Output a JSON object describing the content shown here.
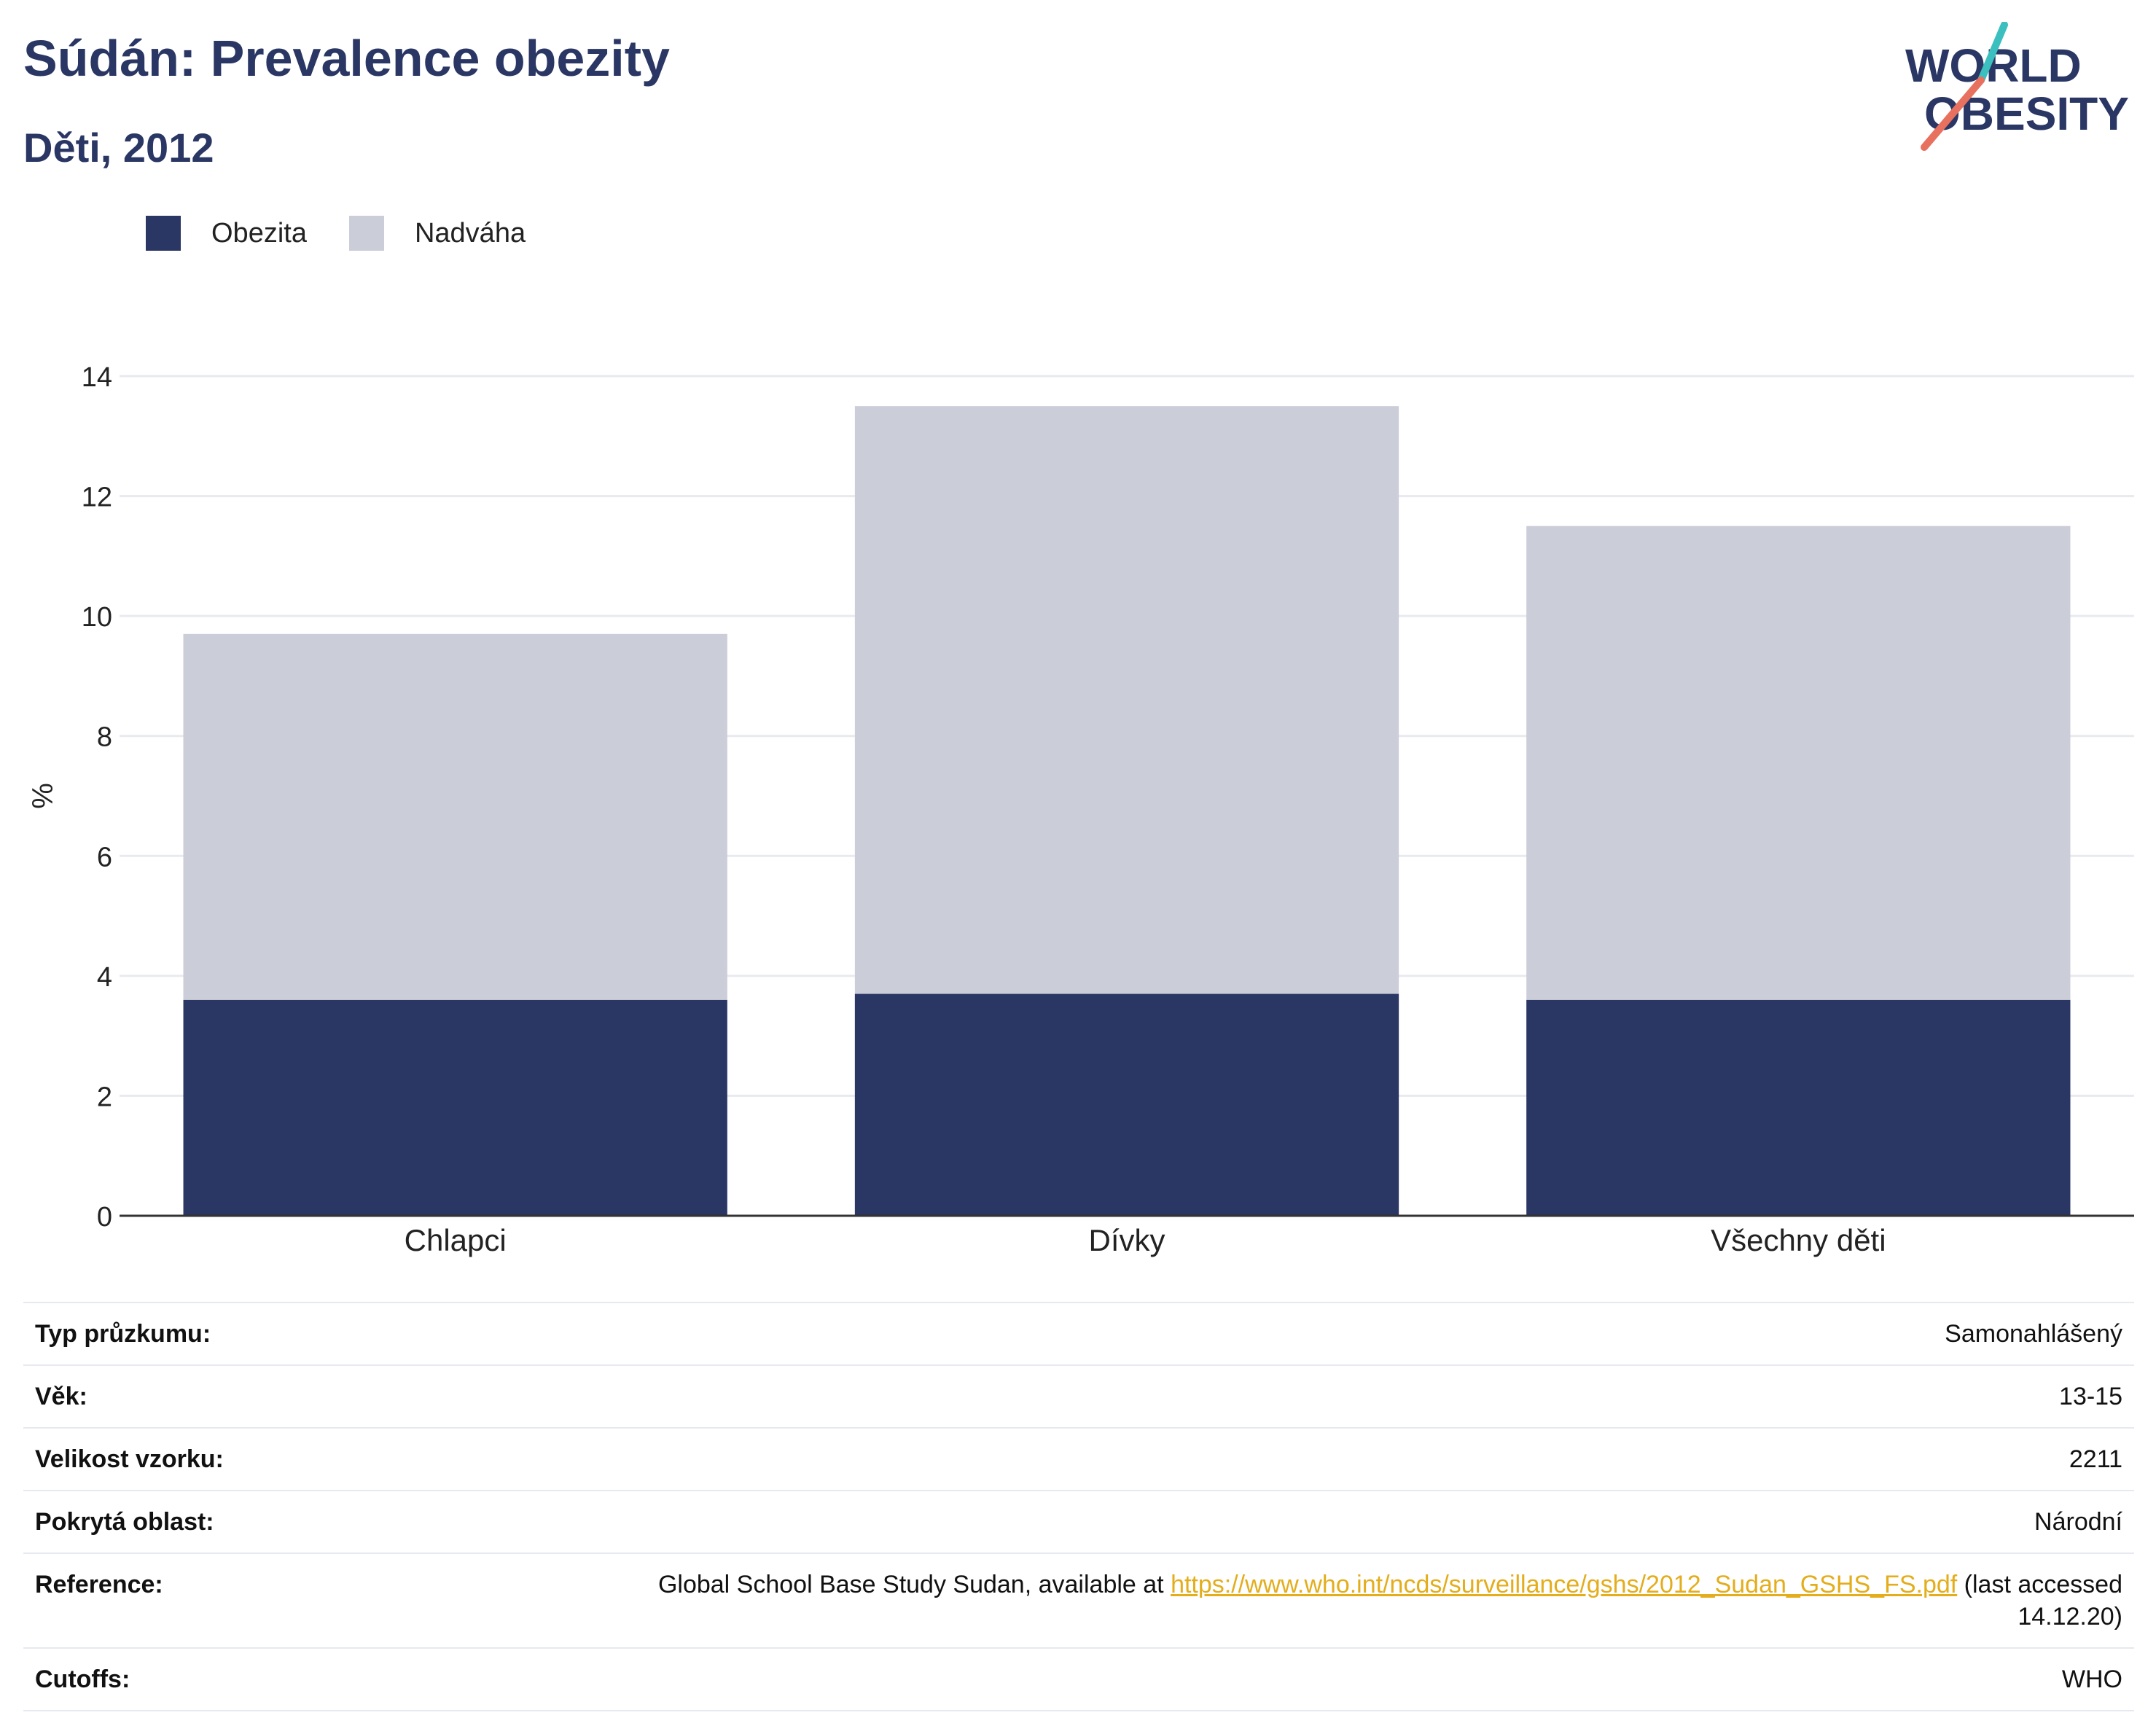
{
  "header": {
    "title": "Súdán: Prevalence obezity",
    "subtitle": "Děti, 2012",
    "logo": {
      "line1": "WORLD",
      "line2": "OBESITY"
    }
  },
  "legend": [
    {
      "label": "Obezita",
      "color": "#2a3663"
    },
    {
      "label": "Nadváha",
      "color": "#cbcdd8"
    }
  ],
  "chart_data": {
    "type": "bar",
    "stacked": true,
    "categories": [
      "Chlapci",
      "Dívky",
      "Všechny děti"
    ],
    "series": [
      {
        "name": "Obezita",
        "values": [
          3.6,
          3.7,
          3.6
        ],
        "color": "#2a3663"
      },
      {
        "name": "Nadváha",
        "values": [
          6.1,
          9.8,
          7.9
        ],
        "color": "#cbcdd8"
      }
    ],
    "title": "Súdán: Prevalence obezity",
    "subtitle": "Děti, 2012",
    "xlabel": "",
    "ylabel": "%",
    "ylim": [
      0,
      14
    ],
    "yticks": [
      0,
      2,
      4,
      6,
      8,
      10,
      12,
      14
    ],
    "grid": true,
    "legend_position": "top-left"
  },
  "info": {
    "survey_type": {
      "label": "Typ průzkumu:",
      "value": "Samonahlášený"
    },
    "age": {
      "label": "Věk:",
      "value": "13-15"
    },
    "sample_size": {
      "label": "Velikost vzorku:",
      "value": "2211"
    },
    "area": {
      "label": "Pokrytá oblast:",
      "value": "Národní"
    },
    "reference": {
      "label": "Reference:",
      "prefix": "Global School Base Study Sudan, available at ",
      "link": "https://www.who.int/ncds/surveillance/gshs/2012_Sudan_GSHS_FS.pdf",
      "suffix": " (last accessed 14.12.20)"
    },
    "cutoffs": {
      "label": "Cutoffs:",
      "value": "WHO"
    }
  }
}
